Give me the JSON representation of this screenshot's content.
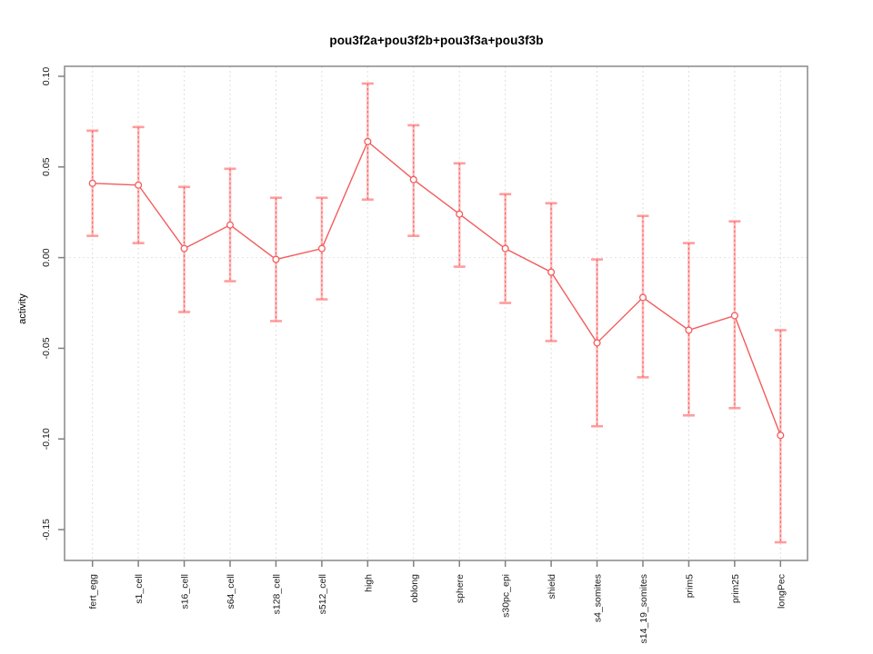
{
  "chart_data": {
    "type": "line",
    "title": "pou3f2a+pou3f2b+pou3f3a+pou3f3b",
    "xlabel": "",
    "ylabel": "activity",
    "legend_position": "none",
    "grid": {
      "vertical_gridlines": true,
      "zero_line": true,
      "style": "dotted"
    },
    "categories": [
      "fert_egg",
      "s1_cell",
      "s16_cell",
      "s64_cell",
      "s128_cell",
      "s512_cell",
      "high",
      "oblong",
      "sphere",
      "s30pc_epi",
      "shield",
      "s4_somites",
      "s14_19_somites",
      "prim5",
      "prim25",
      "longPec"
    ],
    "series": [
      {
        "name": "activity",
        "marker": "open-circle",
        "values": [
          0.041,
          0.04,
          0.005,
          0.018,
          -0.001,
          0.005,
          0.064,
          0.043,
          0.024,
          0.005,
          -0.008,
          -0.047,
          -0.022,
          -0.04,
          -0.032,
          -0.098
        ],
        "err_high": [
          0.07,
          0.072,
          0.039,
          0.049,
          0.033,
          0.033,
          0.096,
          0.073,
          0.052,
          0.035,
          0.03,
          -0.001,
          0.023,
          0.008,
          0.02,
          -0.04
        ],
        "err_low": [
          0.012,
          0.008,
          -0.03,
          -0.013,
          -0.035,
          -0.023,
          0.032,
          0.012,
          -0.005,
          -0.025,
          -0.046,
          -0.093,
          -0.066,
          -0.087,
          -0.083,
          -0.157
        ]
      }
    ],
    "yticks": [
      {
        "value": 0.1,
        "label": "0.10"
      },
      {
        "value": 0.05,
        "label": "0.05"
      },
      {
        "value": 0.0,
        "label": "0.00"
      },
      {
        "value": -0.05,
        "label": "-0.05"
      },
      {
        "value": -0.1,
        "label": "-0.10"
      },
      {
        "value": -0.15,
        "label": "-0.15"
      }
    ],
    "ylim": [
      -0.167,
      0.1055
    ],
    "colors": {
      "series_line": "#f25c5c",
      "marker_stroke": "#f25c5c",
      "marker_fill": "#ffffff",
      "error_band": "#ffbdbd",
      "error_cap": "#ff9d9d",
      "error_dash": "#f25c5c",
      "gridline": "#dedede",
      "zero_line": "#e2e2e2",
      "axis_box": "#909090",
      "tick": "#808080",
      "text": "#1a1a1a",
      "background": "#ffffff"
    }
  }
}
